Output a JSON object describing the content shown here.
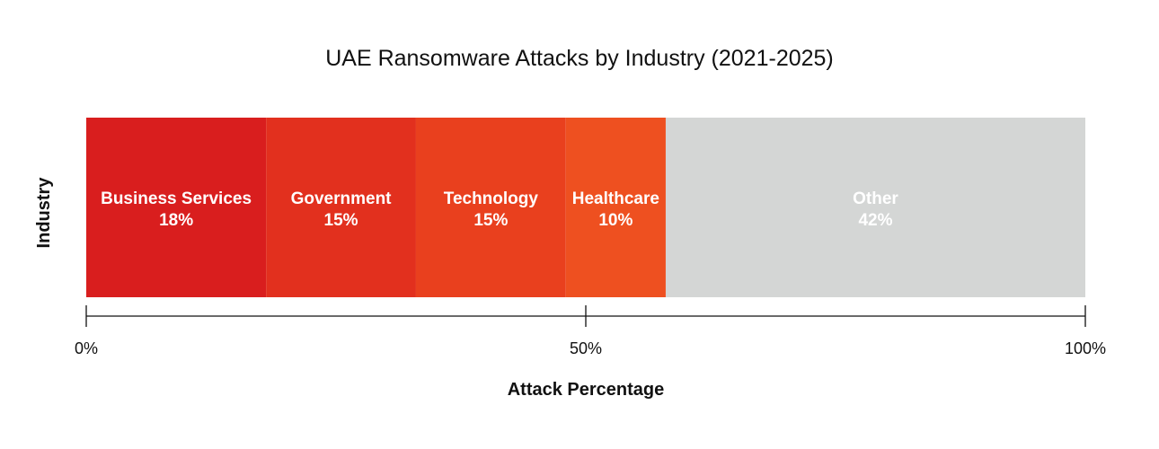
{
  "chart_data": {
    "type": "bar",
    "orientation": "horizontal-stacked",
    "title": "UAE Ransomware Attacks by Industry (2021-2025)",
    "xlabel": "Attack Percentage",
    "ylabel": "Industry",
    "xlim": [
      0,
      100
    ],
    "ticks": [
      "0%",
      "50%",
      "100%"
    ],
    "tick_values": [
      0,
      50,
      100
    ],
    "grid": false,
    "series": [
      {
        "name": "Business Services",
        "value": 18,
        "value_label": "18%",
        "color": "#d91e1e"
      },
      {
        "name": "Government",
        "value": 15,
        "value_label": "15%",
        "color": "#e2301e"
      },
      {
        "name": "Technology",
        "value": 15,
        "value_label": "15%",
        "color": "#e9401e"
      },
      {
        "name": "Healthcare",
        "value": 10,
        "value_label": "10%",
        "color": "#ee5020"
      },
      {
        "name": "Other",
        "value": 42,
        "value_label": "42%",
        "color": "#d4d6d5"
      }
    ]
  }
}
